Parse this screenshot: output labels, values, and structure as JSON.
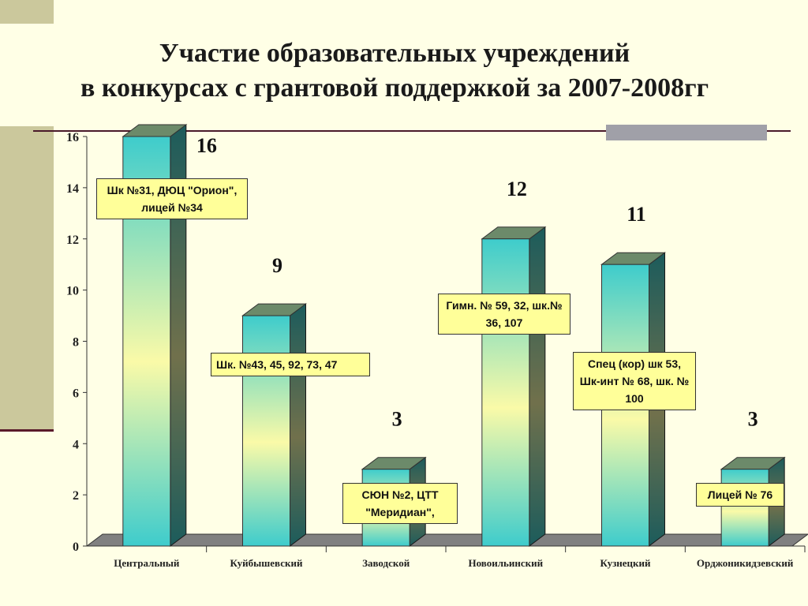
{
  "chart_data": {
    "type": "bar",
    "title": "Участие образовательных учреждений в конкурсах с грантовой поддержкой за 2007-2008гг",
    "title_lines": [
      "Участие образовательных учреждений",
      "в конкурсах с грантовой поддержкой за 2007-2008гг"
    ],
    "categories": [
      "Центральный",
      "Куйбышевский",
      "Заводской",
      "Новоильинский",
      "Кузнецкий",
      "Орджоникидзевский"
    ],
    "values": [
      16,
      9,
      3,
      12,
      11,
      3
    ],
    "data_labels": [
      "16",
      "9",
      "3",
      "12",
      "11",
      "3"
    ],
    "annotations": [
      "Шк №31, ДЮЦ \"Орион\", лицей №34",
      "Шк. №43, 45, 92, 73, 47",
      "СЮН №2, ЦТТ \"Меридиан\",",
      "Гимн. № 59, 32, шк.№ 36, 107",
      "Спец (кор) шк 53, Шк-инт № 68, шк. № 100",
      "Лицей № 76"
    ],
    "yticks": [
      "0",
      "2",
      "4",
      "6",
      "8",
      "10",
      "12",
      "14",
      "16"
    ],
    "ylim": [
      0,
      16
    ],
    "xlabel": "",
    "ylabel": "",
    "grid": false,
    "colors": {
      "bar_top": "#3ecccc",
      "bar_mid": "#fafaa8",
      "bar_side": "#2a7070",
      "floor": "#808080"
    }
  }
}
